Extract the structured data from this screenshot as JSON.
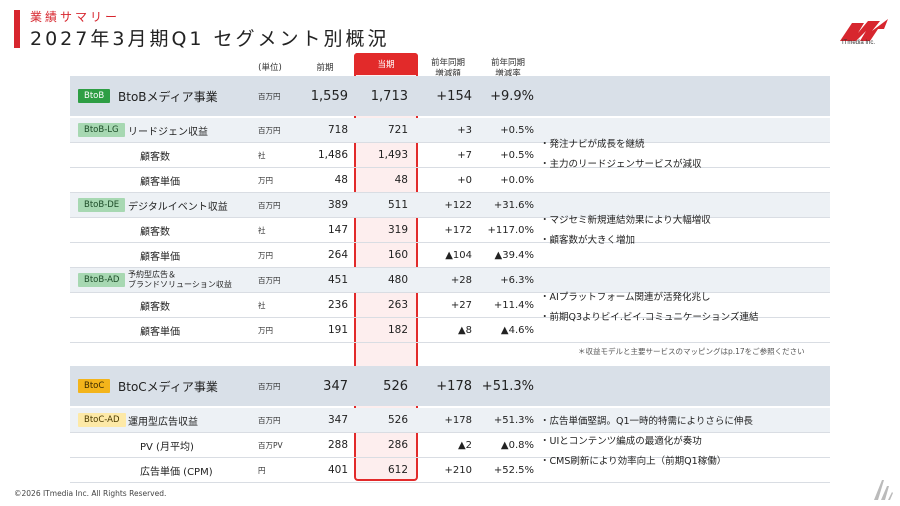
{
  "header": {
    "kicker": "業績サマリー",
    "title": "2027年3月期Q1 セグメント別概況",
    "logo_text": "ITmedia Inc."
  },
  "columns": {
    "unit": "(単位)",
    "prev": "前期",
    "current": "当期",
    "yoy_amount": [
      "前年同期",
      "増減額"
    ],
    "yoy_rate": [
      "前年同期",
      "増減率"
    ]
  },
  "btob": {
    "badge": "BtoB",
    "label": "BtoBメディア事業",
    "unit": "百万円",
    "prev": "1,559",
    "current": "1,713",
    "yoy_amount": "+154",
    "yoy_rate": "+9.9%"
  },
  "btob_rows": [
    {
      "badge": "BtoB-LG",
      "label": "リードジェン収益",
      "unit": "百万円",
      "prev": "718",
      "current": "721",
      "yoy_amount": "+3",
      "yoy_rate": "+0.5%"
    },
    {
      "badge": "",
      "label": "顧客数",
      "unit": "社",
      "prev": "1,486",
      "current": "1,493",
      "yoy_amount": "+7",
      "yoy_rate": "+0.5%"
    },
    {
      "badge": "",
      "label": "顧客単価",
      "unit": "万円",
      "prev": "48",
      "current": "48",
      "yoy_amount": "+0",
      "yoy_rate": "+0.0%"
    },
    {
      "badge": "BtoB-DE",
      "label": "デジタルイベント収益",
      "unit": "百万円",
      "prev": "389",
      "current": "511",
      "yoy_amount": "+122",
      "yoy_rate": "+31.6%"
    },
    {
      "badge": "",
      "label": "顧客数",
      "unit": "社",
      "prev": "147",
      "current": "319",
      "yoy_amount": "+172",
      "yoy_rate": "+117.0%"
    },
    {
      "badge": "",
      "label": "顧客単価",
      "unit": "万円",
      "prev": "264",
      "current": "160",
      "yoy_amount": "▲104",
      "yoy_rate": "▲39.4%"
    },
    {
      "badge": "BtoB-AD",
      "label": "予約型広告＆\nブランドソリューション収益",
      "unit": "百万円",
      "prev": "451",
      "current": "480",
      "yoy_amount": "+28",
      "yoy_rate": "+6.3%"
    },
    {
      "badge": "",
      "label": "顧客数",
      "unit": "社",
      "prev": "236",
      "current": "263",
      "yoy_amount": "+27",
      "yoy_rate": "+11.4%"
    },
    {
      "badge": "",
      "label": "顧客単価",
      "unit": "万円",
      "prev": "191",
      "current": "182",
      "yoy_amount": "▲8",
      "yoy_rate": "▲4.6%"
    }
  ],
  "btob_comments": [
    [
      "・発注ナビが成長を継続",
      "・主力のリードジェンサービスが減収"
    ],
    [
      "・マジセミ新規連結効果により大幅増収",
      "・顧客数が大きく増加"
    ],
    [
      "・AIプラットフォーム関連が活発化兆し",
      "・前期Q3よりビイ.ビイ.コミュニケーションズ連結"
    ]
  ],
  "note": "＊収益モデルと主要サービスのマッピングはp.17をご参照ください",
  "btoc": {
    "badge": "BtoC",
    "label": "BtoCメディア事業",
    "unit": "百万円",
    "prev": "347",
    "current": "526",
    "yoy_amount": "+178",
    "yoy_rate": "+51.3%"
  },
  "btoc_rows": [
    {
      "badge": "BtoC-AD",
      "label": "運用型広告収益",
      "unit": "百万円",
      "prev": "347",
      "current": "526",
      "yoy_amount": "+178",
      "yoy_rate": "+51.3%"
    },
    {
      "badge": "",
      "label": "PV (月平均)",
      "unit": "百万PV",
      "prev": "288",
      "current": "286",
      "yoy_amount": "▲2",
      "yoy_rate": "▲0.8%"
    },
    {
      "badge": "",
      "label": "広告単価 (CPM)",
      "unit": "円",
      "prev": "401",
      "current": "612",
      "yoy_amount": "+210",
      "yoy_rate": "+52.5%"
    }
  ],
  "btoc_comments": [
    "・広告単価堅調。Q1一時的特需によりさらに伸長",
    "・UIとコンテンツ編成の最適化が奏功",
    "・CMS刷新により効率向上（前期Q1稼働）"
  ],
  "footer": "©2026 ITmedia Inc. All Rights Reserved.",
  "colors": {
    "accent": "#d7262e",
    "btob": "#2e9e44",
    "btoc": "#f3b41b",
    "current_col": "#e22a2a"
  }
}
